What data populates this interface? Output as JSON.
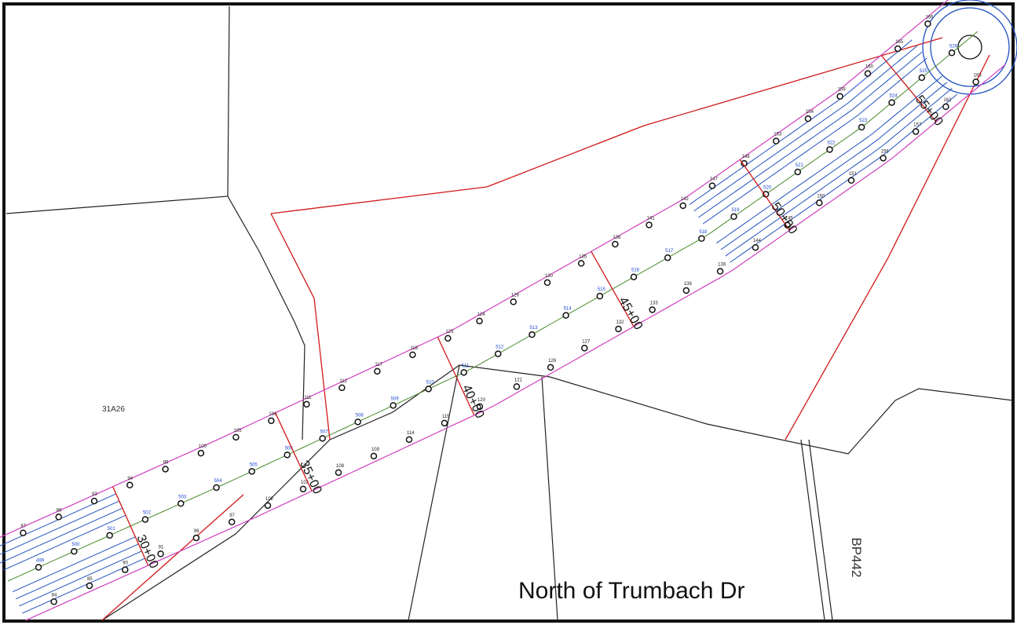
{
  "map": {
    "parcel_label": "31A26",
    "caption": "North of Trumbach Dr",
    "road_label": "BP442",
    "stations": [
      "30+00",
      "35+00",
      "40+00",
      "45+00",
      "50+00",
      "55+00"
    ],
    "upper_points": [
      "84",
      "85",
      "90",
      "91",
      "96",
      "97",
      "102",
      "103",
      "108",
      "109",
      "114",
      "115",
      "120",
      "121",
      "126",
      "127",
      "132",
      "133",
      "138",
      "139",
      "144",
      "145",
      "150",
      "151",
      "156",
      "157",
      "162",
      "163"
    ],
    "center_points": [
      "499",
      "500",
      "501",
      "502",
      "503",
      "504",
      "505",
      "506",
      "507",
      "508",
      "509",
      "510",
      "511",
      "512",
      "513",
      "514",
      "515",
      "516",
      "517",
      "518",
      "519",
      "520",
      "521",
      "522",
      "523",
      "524",
      "525",
      "526"
    ],
    "lower_points": [
      "87",
      "88",
      "93",
      "94",
      "99",
      "100",
      "105",
      "106",
      "111",
      "112",
      "117",
      "118",
      "123",
      "124",
      "129",
      "130",
      "135",
      "136",
      "141",
      "142",
      "147",
      "148",
      "153",
      "154",
      "159",
      "160",
      "165",
      "166"
    ]
  }
}
